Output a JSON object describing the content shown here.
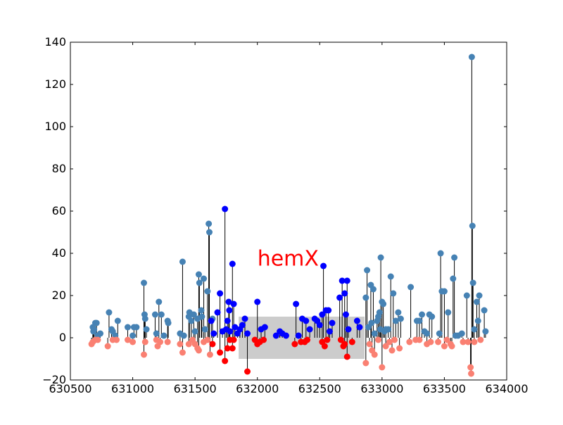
{
  "chart_data": {
    "type": "scatter",
    "style": "stem",
    "xlim": [
      630500,
      634000
    ],
    "ylim": [
      -20,
      140
    ],
    "xticks": [
      "630500",
      "631000",
      "631500",
      "632000",
      "632500",
      "633000",
      "633500",
      "634000"
    ],
    "yticks": [
      "−20",
      "0",
      "20",
      "40",
      "60",
      "80",
      "100",
      "120",
      "140"
    ],
    "grid": false,
    "colors": {
      "outside_plus": "#4682b4",
      "outside_minus": "#fa8072",
      "inside_plus": "#0000ff",
      "inside_minus": "#ff0000",
      "stem": "#000000",
      "gene_box": "#cccccc"
    },
    "gene": {
      "label": "hemX",
      "start": 631850,
      "end": 632860,
      "y_top": 10,
      "y_bottom": -10,
      "label_x": 632000,
      "label_y": 37
    },
    "series": [
      {
        "role": "outside_plus",
        "points": [
          [
            630680,
            5
          ],
          [
            630685,
            3
          ],
          [
            630690,
            4
          ],
          [
            630700,
            7
          ],
          [
            630710,
            7
          ],
          [
            630720,
            1
          ],
          [
            630740,
            2
          ],
          [
            630810,
            12
          ],
          [
            630830,
            4
          ],
          [
            630840,
            3
          ],
          [
            630860,
            1
          ],
          [
            630880,
            8
          ],
          [
            630960,
            5
          ],
          [
            631000,
            1
          ],
          [
            631010,
            5
          ],
          [
            631030,
            5
          ],
          [
            631090,
            26
          ],
          [
            631095,
            11
          ],
          [
            631100,
            9
          ],
          [
            631110,
            4
          ],
          [
            631180,
            11
          ],
          [
            631190,
            2
          ],
          [
            631210,
            17
          ],
          [
            631230,
            11
          ],
          [
            631250,
            1
          ],
          [
            631280,
            8
          ],
          [
            631285,
            7
          ],
          [
            631380,
            2
          ],
          [
            631400,
            36
          ],
          [
            631410,
            1
          ],
          [
            631450,
            10
          ],
          [
            631455,
            12
          ],
          [
            631470,
            8
          ],
          [
            631490,
            11
          ],
          [
            631500,
            3
          ],
          [
            631520,
            9
          ],
          [
            631530,
            30
          ],
          [
            631535,
            26
          ],
          [
            631550,
            13
          ],
          [
            631555,
            10
          ],
          [
            631570,
            28
          ],
          [
            631580,
            4
          ],
          [
            631600,
            22
          ],
          [
            631610,
            54
          ],
          [
            631615,
            50
          ],
          [
            631640,
            9
          ],
          [
            632870,
            19
          ],
          [
            632880,
            32
          ],
          [
            632890,
            5
          ],
          [
            632910,
            25
          ],
          [
            632915,
            7
          ],
          [
            632930,
            23
          ],
          [
            632940,
            2
          ],
          [
            632960,
            8
          ],
          [
            632970,
            10
          ],
          [
            632980,
            12
          ],
          [
            632985,
            4
          ],
          [
            632990,
            38
          ],
          [
            633000,
            17
          ],
          [
            633010,
            16
          ],
          [
            633020,
            3
          ],
          [
            633030,
            4
          ],
          [
            633050,
            4
          ],
          [
            633070,
            29
          ],
          [
            633090,
            21
          ],
          [
            633110,
            8
          ],
          [
            633130,
            12
          ],
          [
            633150,
            9
          ],
          [
            633230,
            24
          ],
          [
            633280,
            8
          ],
          [
            633300,
            8
          ],
          [
            633320,
            11
          ],
          [
            633340,
            3
          ],
          [
            633360,
            2
          ],
          [
            633380,
            11
          ],
          [
            633400,
            10
          ],
          [
            633460,
            2
          ],
          [
            633470,
            40
          ],
          [
            633480,
            22
          ],
          [
            633500,
            22
          ],
          [
            633530,
            12
          ],
          [
            633570,
            28
          ],
          [
            633580,
            38
          ],
          [
            633590,
            1
          ],
          [
            633610,
            1
          ],
          [
            633640,
            2
          ],
          [
            633680,
            20
          ],
          [
            633720,
            133
          ],
          [
            633725,
            53
          ],
          [
            633730,
            26
          ],
          [
            633740,
            4
          ],
          [
            633760,
            17
          ],
          [
            633770,
            8
          ],
          [
            633780,
            20
          ],
          [
            633820,
            13
          ],
          [
            633830,
            3
          ]
        ]
      },
      {
        "role": "outside_minus",
        "points": [
          [
            630670,
            -3
          ],
          [
            630680,
            -2
          ],
          [
            630700,
            -1
          ],
          [
            630720,
            -1
          ],
          [
            630800,
            -4
          ],
          [
            630840,
            -1
          ],
          [
            630870,
            -1
          ],
          [
            630960,
            -1
          ],
          [
            631000,
            -2
          ],
          [
            631090,
            -8
          ],
          [
            631100,
            -2
          ],
          [
            631190,
            -1
          ],
          [
            631200,
            -4
          ],
          [
            631220,
            -2
          ],
          [
            631280,
            -2
          ],
          [
            631380,
            -3
          ],
          [
            631400,
            -7
          ],
          [
            631450,
            -3
          ],
          [
            631480,
            -1
          ],
          [
            631500,
            -3
          ],
          [
            631520,
            -5
          ],
          [
            631530,
            -6
          ],
          [
            631570,
            -2
          ],
          [
            631600,
            -1
          ],
          [
            631620,
            -8
          ],
          [
            632870,
            -12
          ],
          [
            632900,
            -3
          ],
          [
            632920,
            -6
          ],
          [
            632940,
            -8
          ],
          [
            632970,
            -1
          ],
          [
            633000,
            -14
          ],
          [
            633030,
            -4
          ],
          [
            633060,
            -2
          ],
          [
            633080,
            -6
          ],
          [
            633100,
            -1
          ],
          [
            633140,
            -5
          ],
          [
            633220,
            -2
          ],
          [
            633270,
            -1
          ],
          [
            633300,
            -1
          ],
          [
            633360,
            -3
          ],
          [
            633390,
            -2
          ],
          [
            633450,
            -2
          ],
          [
            633500,
            -4
          ],
          [
            633520,
            -1
          ],
          [
            633550,
            -3
          ],
          [
            633560,
            -4
          ],
          [
            633650,
            -2
          ],
          [
            633690,
            -2
          ],
          [
            633710,
            -14
          ],
          [
            633715,
            -17
          ],
          [
            633740,
            -2
          ],
          [
            633790,
            -1
          ]
        ]
      },
      {
        "role": "inside_plus",
        "points": [
          [
            631630,
            8
          ],
          [
            631650,
            2
          ],
          [
            631680,
            12
          ],
          [
            631700,
            21
          ],
          [
            631720,
            3
          ],
          [
            631740,
            61
          ],
          [
            631750,
            4
          ],
          [
            631760,
            8
          ],
          [
            631770,
            17
          ],
          [
            631775,
            13
          ],
          [
            631780,
            3
          ],
          [
            631800,
            35
          ],
          [
            631810,
            16
          ],
          [
            631820,
            5
          ],
          [
            631840,
            2
          ],
          [
            631860,
            4
          ],
          [
            631880,
            6
          ],
          [
            631900,
            9
          ],
          [
            631920,
            2
          ],
          [
            632000,
            17
          ],
          [
            632030,
            4
          ],
          [
            632060,
            5
          ],
          [
            632150,
            1
          ],
          [
            632180,
            3
          ],
          [
            632200,
            2
          ],
          [
            632230,
            1
          ],
          [
            632310,
            16
          ],
          [
            632330,
            1
          ],
          [
            632360,
            9
          ],
          [
            632390,
            8
          ],
          [
            632420,
            4
          ],
          [
            632460,
            9
          ],
          [
            632480,
            8
          ],
          [
            632500,
            6
          ],
          [
            632520,
            11
          ],
          [
            632530,
            34
          ],
          [
            632550,
            13
          ],
          [
            632570,
            13
          ],
          [
            632580,
            3
          ],
          [
            632600,
            7
          ],
          [
            632660,
            19
          ],
          [
            632680,
            27
          ],
          [
            632700,
            21
          ],
          [
            632710,
            11
          ],
          [
            632720,
            27
          ],
          [
            632730,
            4
          ],
          [
            632800,
            8
          ],
          [
            632820,
            5
          ]
        ]
      },
      {
        "role": "inside_minus",
        "points": [
          [
            631640,
            -3
          ],
          [
            631700,
            -7
          ],
          [
            631740,
            -11
          ],
          [
            631760,
            -5
          ],
          [
            631780,
            -1
          ],
          [
            631800,
            -5
          ],
          [
            631810,
            -1
          ],
          [
            631920,
            -16
          ],
          [
            631980,
            -1
          ],
          [
            632000,
            -3
          ],
          [
            632020,
            -2
          ],
          [
            632050,
            -1
          ],
          [
            632300,
            -3
          ],
          [
            632350,
            -2
          ],
          [
            632380,
            -2
          ],
          [
            632400,
            -1
          ],
          [
            632520,
            -2
          ],
          [
            632540,
            -4
          ],
          [
            632560,
            -1
          ],
          [
            632670,
            -1
          ],
          [
            632690,
            -4
          ],
          [
            632700,
            -3
          ],
          [
            632720,
            -9
          ],
          [
            632760,
            -2
          ]
        ]
      }
    ]
  }
}
